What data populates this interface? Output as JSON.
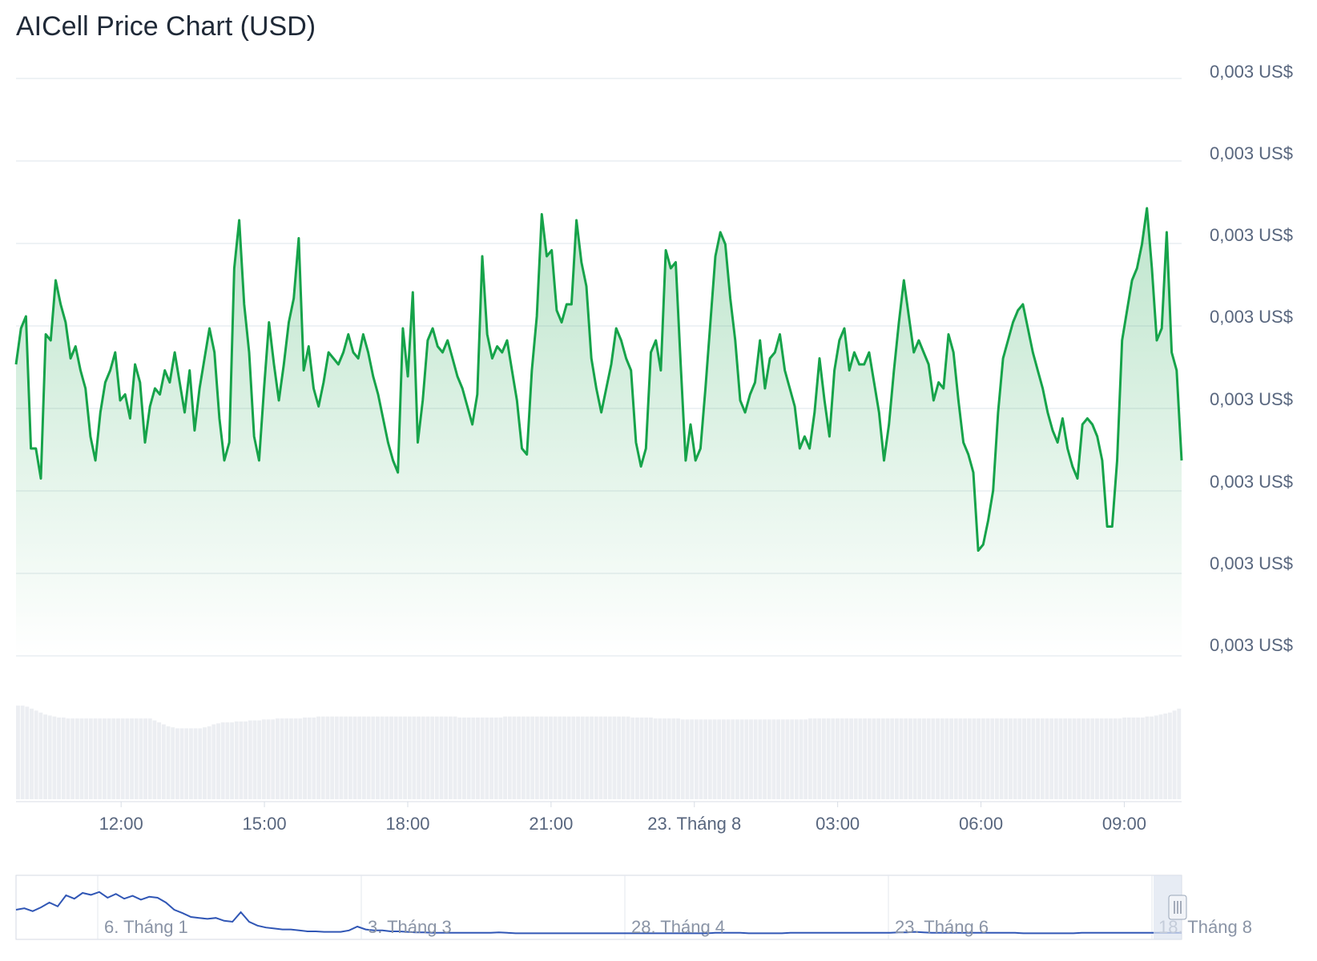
{
  "title": "AICell Price Chart (USD)",
  "colors": {
    "price_line": "#16a34a",
    "area_top": "#16a34a",
    "grid": "#e9edf2",
    "volume_bar": "#eceef2",
    "navigator_line": "#3056b5",
    "navigator_handle": "#c9d3e3",
    "tick_text": "#58667e"
  },
  "chart_data": {
    "type": "line",
    "title": "AICell Price Chart (USD)",
    "xlabel": "",
    "ylabel": "",
    "x_tick_labels": [
      "12:00",
      "15:00",
      "18:00",
      "21:00",
      "23. Tháng 8",
      "03:00",
      "06:00",
      "09:00"
    ],
    "y_tick_labels": [
      "0,003 US$",
      "0,003 US$",
      "0,003 US$",
      "0,003 US$",
      "0,003 US$",
      "0,003 US$",
      "0,003 US$",
      "0,003 US$"
    ],
    "x_range_hours": [
      9.8,
      34.2
    ],
    "y_range": [
      0.0,
      1.0
    ],
    "grid": true,
    "legend": "none",
    "series": [
      {
        "values": [
          0.56,
          0.62,
          0.64,
          0.42,
          0.42,
          0.37,
          0.61,
          0.6,
          0.7,
          0.66,
          0.63,
          0.57,
          0.59,
          0.55,
          0.52,
          0.44,
          0.4,
          0.48,
          0.53,
          0.55,
          0.58,
          0.5,
          0.51,
          0.47,
          0.56,
          0.53,
          0.43,
          0.49,
          0.52,
          0.51,
          0.55,
          0.53,
          0.58,
          0.53,
          0.48,
          0.55,
          0.45,
          0.52,
          0.57,
          0.62,
          0.58,
          0.47,
          0.4,
          0.43,
          0.72,
          0.8,
          0.66,
          0.58,
          0.44,
          0.4,
          0.52,
          0.63,
          0.56,
          0.5,
          0.56,
          0.63,
          0.67,
          0.77,
          0.55,
          0.59,
          0.52,
          0.49,
          0.53,
          0.58,
          0.57,
          0.56,
          0.58,
          0.61,
          0.58,
          0.57,
          0.61,
          0.58,
          0.54,
          0.51,
          0.47,
          0.43,
          0.4,
          0.38,
          0.62,
          0.54,
          0.68,
          0.43,
          0.5,
          0.6,
          0.62,
          0.59,
          0.58,
          0.6,
          0.57,
          0.54,
          0.52,
          0.49,
          0.46,
          0.51,
          0.74,
          0.61,
          0.57,
          0.59,
          0.58,
          0.6,
          0.55,
          0.5,
          0.42,
          0.41,
          0.55,
          0.64,
          0.81,
          0.74,
          0.75,
          0.65,
          0.63,
          0.66,
          0.66,
          0.8,
          0.73,
          0.69,
          0.57,
          0.52,
          0.48,
          0.52,
          0.56,
          0.62,
          0.6,
          0.57,
          0.55,
          0.43,
          0.39,
          0.42,
          0.58,
          0.6,
          0.55,
          0.75,
          0.72,
          0.73,
          0.56,
          0.4,
          0.46,
          0.4,
          0.42,
          0.52,
          0.63,
          0.74,
          0.78,
          0.76,
          0.67,
          0.6,
          0.5,
          0.48,
          0.51,
          0.53,
          0.6,
          0.52,
          0.57,
          0.58,
          0.61,
          0.55,
          0.52,
          0.49,
          0.42,
          0.44,
          0.42,
          0.48,
          0.57,
          0.5,
          0.44,
          0.55,
          0.6,
          0.62,
          0.55,
          0.58,
          0.56,
          0.56,
          0.58,
          0.53,
          0.48,
          0.4,
          0.46,
          0.55,
          0.63,
          0.7,
          0.64,
          0.58,
          0.6,
          0.58,
          0.56,
          0.5,
          0.53,
          0.52,
          0.61,
          0.58,
          0.5,
          0.43,
          0.41,
          0.38,
          0.25,
          0.26,
          0.3,
          0.35,
          0.48,
          0.57,
          0.6,
          0.63,
          0.65,
          0.66,
          0.62,
          0.58,
          0.55,
          0.52,
          0.48,
          0.45,
          0.43,
          0.47,
          0.42,
          0.39,
          0.37,
          0.46,
          0.47,
          0.46,
          0.44,
          0.4,
          0.29,
          0.29,
          0.4,
          0.6,
          0.65,
          0.7,
          0.72,
          0.76,
          0.82,
          0.72,
          0.6,
          0.62,
          0.78,
          0.58,
          0.55,
          0.4
        ],
        "color": "#16a34a"
      }
    ],
    "volume": [
      0.95,
      0.95,
      0.94,
      0.92,
      0.9,
      0.88,
      0.86,
      0.85,
      0.84,
      0.83,
      0.83,
      0.82,
      0.82,
      0.82,
      0.82,
      0.82,
      0.82,
      0.82,
      0.82,
      0.82,
      0.82,
      0.82,
      0.82,
      0.82,
      0.82,
      0.82,
      0.82,
      0.82,
      0.82,
      0.82,
      0.8,
      0.78,
      0.76,
      0.74,
      0.73,
      0.72,
      0.72,
      0.72,
      0.72,
      0.72,
      0.72,
      0.73,
      0.74,
      0.76,
      0.77,
      0.78,
      0.78,
      0.78,
      0.79,
      0.79,
      0.79,
      0.8,
      0.8,
      0.8,
      0.81,
      0.81,
      0.81,
      0.82,
      0.82,
      0.82,
      0.82,
      0.82,
      0.82,
      0.83,
      0.83,
      0.83,
      0.84,
      0.84,
      0.84,
      0.84,
      0.84,
      0.84,
      0.84,
      0.84,
      0.84,
      0.84,
      0.84,
      0.84,
      0.84,
      0.84,
      0.84,
      0.84,
      0.84,
      0.84,
      0.84,
      0.84,
      0.84,
      0.84,
      0.84,
      0.84,
      0.84,
      0.84,
      0.84,
      0.84,
      0.84,
      0.84,
      0.84,
      0.83,
      0.83,
      0.83,
      0.83,
      0.83,
      0.83,
      0.83,
      0.83,
      0.83,
      0.83,
      0.84,
      0.84,
      0.84,
      0.84,
      0.84,
      0.84,
      0.84,
      0.84,
      0.84,
      0.84,
      0.84,
      0.84,
      0.84,
      0.84,
      0.84,
      0.84,
      0.84,
      0.84,
      0.84,
      0.84,
      0.84,
      0.84,
      0.84,
      0.84,
      0.84,
      0.84,
      0.84,
      0.84,
      0.83,
      0.83,
      0.83,
      0.83,
      0.83,
      0.82,
      0.82,
      0.82,
      0.82,
      0.82,
      0.82,
      0.81,
      0.81,
      0.81,
      0.81,
      0.81,
      0.81,
      0.81,
      0.81,
      0.81,
      0.81,
      0.81,
      0.81,
      0.81,
      0.81,
      0.81,
      0.81,
      0.81,
      0.81,
      0.81,
      0.81,
      0.81,
      0.81,
      0.81,
      0.81,
      0.81,
      0.81,
      0.81,
      0.81,
      0.82,
      0.82,
      0.82,
      0.82,
      0.82,
      0.82,
      0.82,
      0.82,
      0.82,
      0.82,
      0.82,
      0.82,
      0.82,
      0.82,
      0.82,
      0.82,
      0.82,
      0.82,
      0.82,
      0.82,
      0.82,
      0.82,
      0.82,
      0.82,
      0.82,
      0.82,
      0.82,
      0.82,
      0.82,
      0.82,
      0.82,
      0.82,
      0.82,
      0.82,
      0.82,
      0.82,
      0.82,
      0.82,
      0.82,
      0.82,
      0.82,
      0.82,
      0.82,
      0.82,
      0.82,
      0.82,
      0.82,
      0.82,
      0.82,
      0.82,
      0.82,
      0.82,
      0.82,
      0.82,
      0.82,
      0.82,
      0.82,
      0.82,
      0.82,
      0.82,
      0.82,
      0.82,
      0.82,
      0.82,
      0.82,
      0.82,
      0.82,
      0.82,
      0.82,
      0.83,
      0.83,
      0.83,
      0.83,
      0.83,
      0.84,
      0.84,
      0.85,
      0.86,
      0.87,
      0.88,
      0.9,
      0.92
    ]
  },
  "navigator": {
    "tick_labels": [
      "6. Tháng 1",
      "3. Tháng 3",
      "28. Tháng 4",
      "23. Tháng 6",
      "18. Tháng 8"
    ],
    "values": [
      0.55,
      0.58,
      0.52,
      0.6,
      0.7,
      0.62,
      0.85,
      0.78,
      0.9,
      0.86,
      0.92,
      0.8,
      0.88,
      0.78,
      0.84,
      0.76,
      0.82,
      0.8,
      0.7,
      0.55,
      0.48,
      0.4,
      0.38,
      0.36,
      0.38,
      0.32,
      0.3,
      0.5,
      0.3,
      0.22,
      0.18,
      0.16,
      0.14,
      0.14,
      0.12,
      0.1,
      0.1,
      0.09,
      0.09,
      0.09,
      0.12,
      0.2,
      0.14,
      0.12,
      0.12,
      0.1,
      0.1,
      0.09,
      0.08,
      0.08,
      0.07,
      0.07,
      0.07,
      0.07,
      0.07,
      0.07,
      0.07,
      0.07,
      0.08,
      0.07,
      0.06,
      0.06,
      0.06,
      0.06,
      0.06,
      0.06,
      0.06,
      0.06,
      0.06,
      0.06,
      0.06,
      0.06,
      0.06,
      0.06,
      0.06,
      0.06,
      0.06,
      0.06,
      0.06,
      0.06,
      0.06,
      0.06,
      0.06,
      0.06,
      0.07,
      0.07,
      0.07,
      0.07,
      0.06,
      0.06,
      0.06,
      0.06,
      0.06,
      0.07,
      0.07,
      0.07,
      0.07,
      0.07,
      0.07,
      0.07,
      0.07,
      0.07,
      0.07,
      0.07,
      0.07,
      0.07,
      0.08,
      0.08,
      0.09,
      0.08,
      0.07,
      0.07,
      0.07,
      0.07,
      0.07,
      0.07,
      0.07,
      0.07,
      0.07,
      0.07,
      0.07,
      0.06,
      0.06,
      0.06,
      0.06,
      0.06,
      0.06,
      0.06,
      0.07,
      0.07,
      0.07,
      0.07,
      0.07,
      0.07,
      0.07,
      0.07,
      0.07,
      0.07,
      0.07,
      0.07,
      0.07
    ]
  }
}
